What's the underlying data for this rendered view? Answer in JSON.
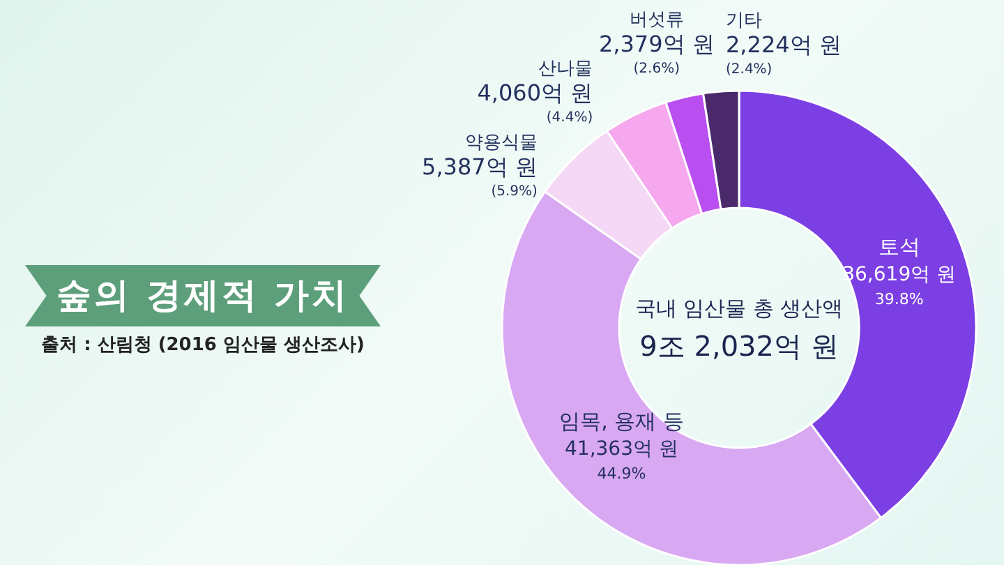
{
  "chart_data": {
    "type": "donut",
    "title": "숲의 경제적 가치",
    "categories": [
      "토석",
      "임목, 용재 등",
      "약용식물",
      "산나물",
      "버섯류",
      "기타"
    ],
    "values": [
      36619,
      41363,
      5387,
      4060,
      2379,
      2224
    ],
    "colors": [
      "#7b3fe4",
      "#d9a8f2",
      "#f5d8f5",
      "#f6a8ef",
      "#b94ff0",
      "#4b2a6b"
    ],
    "value_labels": [
      "36,619억 원",
      "41,363억 원",
      "5,387억 원",
      "4,060억 원",
      "2,379억 원",
      "2,224억 원"
    ],
    "annotations": [
      "출처 : 산림청 (2016 임산물 생산조사)",
      "국내 임산물 총 생산액",
      "9조 2,032억 원",
      "39.8%",
      "44.9%",
      "(5.9%)",
      "(4.4%)",
      "(2.6%)",
      "(2.4%)"
    ]
  }
}
